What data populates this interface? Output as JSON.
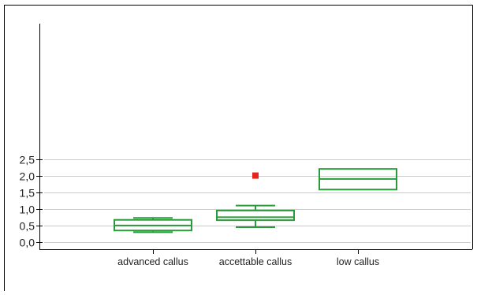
{
  "chart_data": {
    "type": "box",
    "categories": [
      "advanced callus",
      "accettable callus",
      "low callus"
    ],
    "boxes": [
      {
        "category": "advanced callus",
        "whisker_low": 0.3,
        "q1": 0.35,
        "median": 0.5,
        "q3": 0.67,
        "whisker_high": 0.73,
        "outliers": []
      },
      {
        "category": "accettable callus",
        "whisker_low": 0.45,
        "q1": 0.66,
        "median": 0.75,
        "q3": 0.95,
        "whisker_high": 1.1,
        "outliers": [
          2.0
        ]
      },
      {
        "category": "low callus",
        "whisker_low": null,
        "q1": 1.58,
        "median": 1.9,
        "q3": 2.2,
        "whisker_high": null,
        "outliers": []
      }
    ],
    "y_ticks": [
      "0,0",
      "0,5",
      "1,0",
      "1,5",
      "2,0",
      "2,5"
    ],
    "y_tick_values": [
      0,
      0.5,
      1.0,
      1.5,
      2.0,
      2.5
    ],
    "ylim": [
      -0.07,
      2.62
    ],
    "title": "",
    "xlabel": "",
    "ylabel": "",
    "grid": true,
    "colors": {
      "box": "#2a9a3a",
      "outlier": "#e8231c",
      "grid": "#cccccc",
      "axis": "#000000",
      "text": "#222222"
    }
  }
}
